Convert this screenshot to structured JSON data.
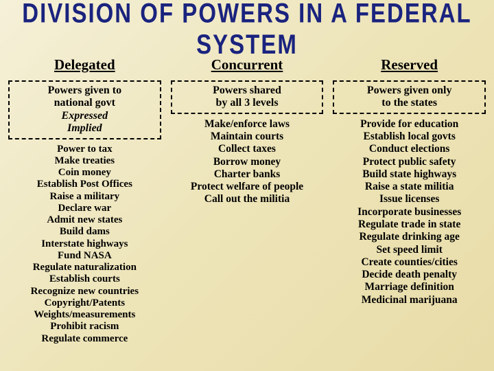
{
  "title": "DIVISION OF POWERS IN A FEDERAL SYSTEM",
  "columns": [
    {
      "header": "Delegated",
      "subtitle_lines": [
        "Powers given to",
        "national govt"
      ],
      "subtitle_italic_lines": [
        "Expressed",
        "Implied"
      ],
      "items": [
        "Power to tax",
        "Make treaties",
        "Coin money",
        "Establish Post Offices",
        "Raise a military",
        "Declare war",
        "Admit new states",
        "Build dams",
        "Interstate highways",
        "Fund NASA",
        "Regulate naturalization",
        "Establish courts",
        "Recognize new countries",
        "Copyright/Patents",
        "Weights/measurements",
        "Prohibit racism",
        "Regulate commerce"
      ]
    },
    {
      "header": "Concurrent",
      "subtitle_lines": [
        "Powers shared",
        "by all 3 levels"
      ],
      "subtitle_italic_lines": [],
      "items": [
        "Make/enforce laws",
        "Maintain courts",
        "Collect taxes",
        "Borrow money",
        "Charter banks",
        "Protect welfare of people",
        "Call out the militia"
      ]
    },
    {
      "header": "Reserved",
      "subtitle_lines": [
        "Powers given only",
        "to the states"
      ],
      "subtitle_italic_lines": [],
      "items": [
        "Provide for education",
        "Establish local govts",
        "Conduct elections",
        "Protect public safety",
        "Build state highways",
        "Raise a state militia",
        "Issue licenses",
        "Incorporate businesses",
        "Regulate trade in state",
        "Regulate drinking age",
        "Set speed limit",
        "Create counties/cities",
        "Decide death penalty",
        "Marriage definition",
        "Medicinal marijuana"
      ]
    }
  ],
  "colors": {
    "title_color": "#1a237e",
    "bg_start": "#f5f0d8",
    "bg_end": "#e8dca8",
    "border": "#000000",
    "text": "#000000"
  },
  "typography": {
    "title_fontsize": 33,
    "header_fontsize": 21,
    "sub_fontsize": 16,
    "item_fontsize": 15.5
  }
}
